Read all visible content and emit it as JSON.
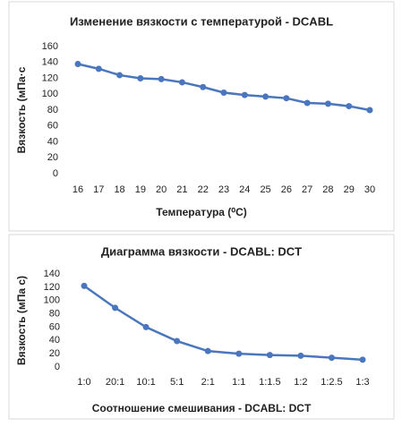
{
  "chart_data": [
    {
      "type": "line",
      "title": "Изменение вязкости с температурой - DCABL",
      "y_label": "Вязкость (мПа·с",
      "x_label": "Температура (⁰C)",
      "categories": [
        "16",
        "17",
        "18",
        "19",
        "20",
        "21",
        "22",
        "23",
        "24",
        "25",
        "26",
        "27",
        "28",
        "29",
        "30"
      ],
      "series": [
        {
          "color": "#4a76bd",
          "values": [
            138,
            132,
            124,
            120,
            119,
            115,
            109,
            102,
            99,
            97,
            95,
            89,
            88,
            85,
            80
          ]
        }
      ],
      "ylim": [
        0,
        160
      ],
      "yticks": [
        0,
        20,
        40,
        60,
        80,
        100,
        120,
        140,
        160
      ]
    },
    {
      "type": "line",
      "title": "Диаграмма вязкости - DCABL: DCT",
      "y_label": "Вязкость (мПа с)",
      "x_label": "Соотношение смешивания - DCABL: DCT",
      "categories": [
        "1:0",
        "20:1",
        "10:1",
        "5:1",
        "2:1",
        "1:1",
        "1:1.5",
        "1:2",
        "1:2.5",
        "1:3"
      ],
      "series": [
        {
          "color": "#4a76bd",
          "values": [
            122,
            89,
            60,
            39,
            24,
            20,
            18,
            17,
            14,
            11
          ]
        }
      ],
      "ylim": [
        0,
        140
      ],
      "yticks": [
        0,
        20,
        40,
        60,
        80,
        100,
        120,
        140
      ]
    }
  ]
}
